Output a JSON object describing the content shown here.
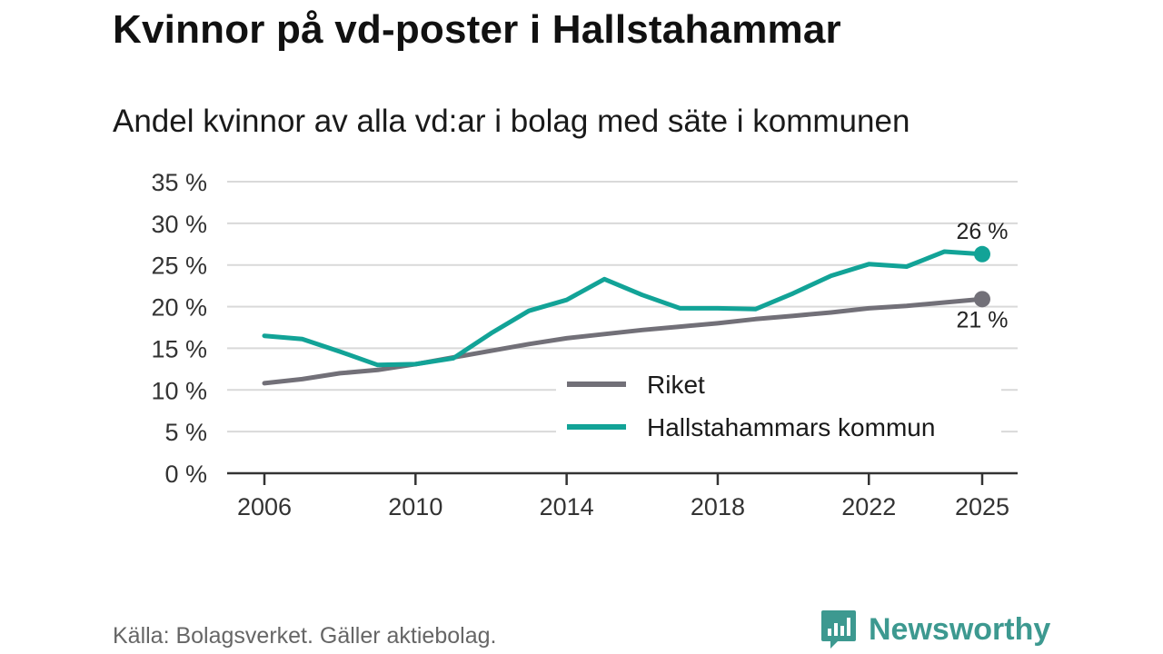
{
  "header": {
    "title": "Kvinnor på vd-poster i Hallstahammar",
    "subtitle": "Andel kvinnor av alla vd:ar i bolag med säte i kommunen"
  },
  "footer": {
    "source": "Källa: Bolagsverket. Gäller aktiebolag.",
    "brand": "Newsworthy"
  },
  "colors": {
    "riket": "#727078",
    "kommun": "#12a397",
    "grid": "#d9d9d9",
    "axis": "#333333",
    "brand": "#3d9990"
  },
  "chart_data": {
    "type": "line",
    "title": "Kvinnor på vd-poster i Hallstahammar",
    "subtitle": "Andel kvinnor av alla vd:ar i bolag med säte i kommunen",
    "xlabel": "",
    "ylabel": "",
    "x": [
      2006,
      2007,
      2008,
      2009,
      2010,
      2011,
      2012,
      2013,
      2014,
      2015,
      2016,
      2017,
      2018,
      2019,
      2020,
      2021,
      2022,
      2023,
      2024,
      2025
    ],
    "xlim": [
      2006,
      2025
    ],
    "xticks": [
      2006,
      2010,
      2014,
      2018,
      2022,
      2025
    ],
    "xtick_labels": [
      "2006",
      "2010",
      "2014",
      "2018",
      "2022",
      "2025"
    ],
    "ylim": [
      0,
      35
    ],
    "yticks": [
      0,
      5,
      10,
      15,
      20,
      25,
      30,
      35
    ],
    "ytick_labels": [
      "0 %",
      "5 %",
      "10 %",
      "15 %",
      "20 %",
      "25 %",
      "30 %",
      "35 %"
    ],
    "grid": true,
    "legend": "bottom-right",
    "series": [
      {
        "name": "Riket",
        "color": "#727078",
        "values": [
          10.8,
          11.3,
          12.0,
          12.4,
          13.1,
          13.9,
          14.7,
          15.5,
          16.2,
          16.7,
          17.2,
          17.6,
          18.0,
          18.5,
          18.9,
          19.3,
          19.8,
          20.1,
          20.5,
          20.9
        ],
        "end_label": "21 %"
      },
      {
        "name": "Hallstahammars kommun",
        "color": "#12a397",
        "values": [
          16.5,
          16.1,
          14.6,
          13.0,
          13.1,
          13.8,
          16.8,
          19.5,
          20.8,
          23.3,
          21.4,
          19.8,
          19.8,
          19.7,
          21.6,
          23.7,
          25.1,
          24.8,
          26.6,
          26.3
        ],
        "end_label": "26 %"
      }
    ]
  }
}
